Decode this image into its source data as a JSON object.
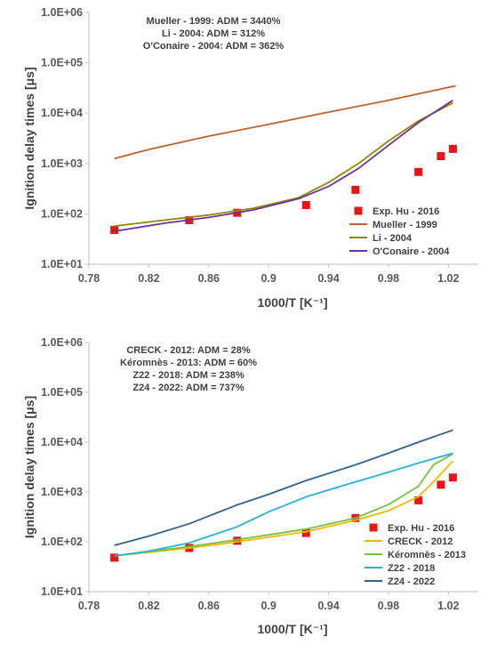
{
  "chart_data": [
    {
      "type": "scatter",
      "xlabel": "1000/T [K⁻¹]",
      "ylabel": "Ignition delay times [μs]",
      "log_y": true,
      "ylim": [
        10,
        1000000
      ],
      "xlim": [
        0.78,
        1.04
      ],
      "xticks": [
        "0.78",
        "0.82",
        "0.86",
        "0.9",
        "0.94",
        "0.98",
        "1.02"
      ],
      "yticks": [
        "1.0E+01",
        "1.0E+02",
        "1.0E+03",
        "1.0E+04",
        "1.0E+05",
        "1.0E+06"
      ],
      "grid": false,
      "legend_position": "lower-right",
      "annotations": [
        "Mueller - 1999: ADM = 3440%",
        "Li - 2004: ADM = 312%",
        "O'Conaire - 2004: ADM = 362%"
      ],
      "series": [
        {
          "name": "Exp. Hu - 2016",
          "kind": "markers",
          "color": "#e81515",
          "x": [
            0.797,
            0.847,
            0.879,
            0.925,
            0.958,
            1.0,
            1.015,
            1.023
          ],
          "y": [
            48,
            75,
            105,
            150,
            300,
            680,
            1400,
            1950
          ]
        },
        {
          "name": "Mueller - 1999",
          "kind": "line",
          "color": "#c0622a",
          "x": [
            0.797,
            0.82,
            0.86,
            0.9,
            0.94,
            0.98,
            1.025
          ],
          "y": [
            1250,
            1900,
            3500,
            6000,
            10500,
            18000,
            35000
          ]
        },
        {
          "name": "Li - 2004",
          "kind": "line",
          "color": "#8f8a00",
          "x": [
            0.797,
            0.83,
            0.86,
            0.89,
            0.92,
            0.94,
            0.96,
            0.98,
            1.0,
            1.023
          ],
          "y": [
            57,
            75,
            95,
            130,
            210,
            420,
            1000,
            2800,
            7000,
            16000
          ]
        },
        {
          "name": "O'Conaire - 2004",
          "kind": "line",
          "color": "#7030a0",
          "x": [
            0.797,
            0.83,
            0.86,
            0.89,
            0.92,
            0.94,
            0.96,
            0.98,
            1.0,
            1.023
          ],
          "y": [
            45,
            65,
            85,
            120,
            200,
            350,
            800,
            2300,
            6500,
            18000
          ]
        }
      ]
    },
    {
      "type": "scatter",
      "xlabel": "1000/T [K⁻¹]",
      "ylabel": "Ignition delay times [μs]",
      "log_y": true,
      "ylim": [
        10,
        1000000
      ],
      "xlim": [
        0.78,
        1.04
      ],
      "xticks": [
        "0.78",
        "0.82",
        "0.86",
        "0.9",
        "0.94",
        "0.98",
        "1.02"
      ],
      "yticks": [
        "1.0E+01",
        "1.0E+02",
        "1.0E+03",
        "1.0E+04",
        "1.0E+05",
        "1.0E+06"
      ],
      "grid": false,
      "legend_position": "lower-right",
      "annotations": [
        "CRECK - 2012: ADM = 28%",
        "Kéromnès - 2013: ADM = 60%",
        "Z22 - 2018: ADM = 238%",
        "Z24 - 2022: ADM = 737%"
      ],
      "series": [
        {
          "name": "Exp. Hu - 2016",
          "kind": "markers",
          "color": "#e81515",
          "x": [
            0.797,
            0.847,
            0.879,
            0.925,
            0.958,
            1.0,
            1.015,
            1.023
          ],
          "y": [
            48,
            75,
            105,
            150,
            300,
            680,
            1400,
            1950
          ]
        },
        {
          "name": "CRECK - 2012",
          "kind": "line",
          "color": "#f5b800",
          "x": [
            0.797,
            0.847,
            0.879,
            0.925,
            0.958,
            0.98,
            1.0,
            1.01,
            1.023
          ],
          "y": [
            52,
            75,
            100,
            160,
            270,
            420,
            800,
            1600,
            4200
          ]
        },
        {
          "name": "Kéromnès - 2013",
          "kind": "line",
          "color": "#76c043",
          "x": [
            0.797,
            0.847,
            0.879,
            0.925,
            0.958,
            0.98,
            1.0,
            1.01,
            1.023
          ],
          "y": [
            52,
            80,
            110,
            180,
            300,
            560,
            1300,
            3500,
            5800
          ]
        },
        {
          "name": "Z22 - 2018",
          "kind": "line",
          "color": "#1fb5d6",
          "x": [
            0.797,
            0.82,
            0.847,
            0.879,
            0.9,
            0.925,
            0.958,
            0.98,
            1.0,
            1.023
          ],
          "y": [
            52,
            65,
            95,
            200,
            400,
            800,
            1600,
            2500,
            3800,
            6000
          ]
        },
        {
          "name": "Z24 - 2022",
          "kind": "line",
          "color": "#2e6496",
          "x": [
            0.797,
            0.82,
            0.847,
            0.879,
            0.9,
            0.925,
            0.958,
            0.98,
            1.0,
            1.023
          ],
          "y": [
            85,
            130,
            230,
            550,
            900,
            1700,
            3500,
            6000,
            10000,
            17500
          ]
        }
      ]
    }
  ]
}
